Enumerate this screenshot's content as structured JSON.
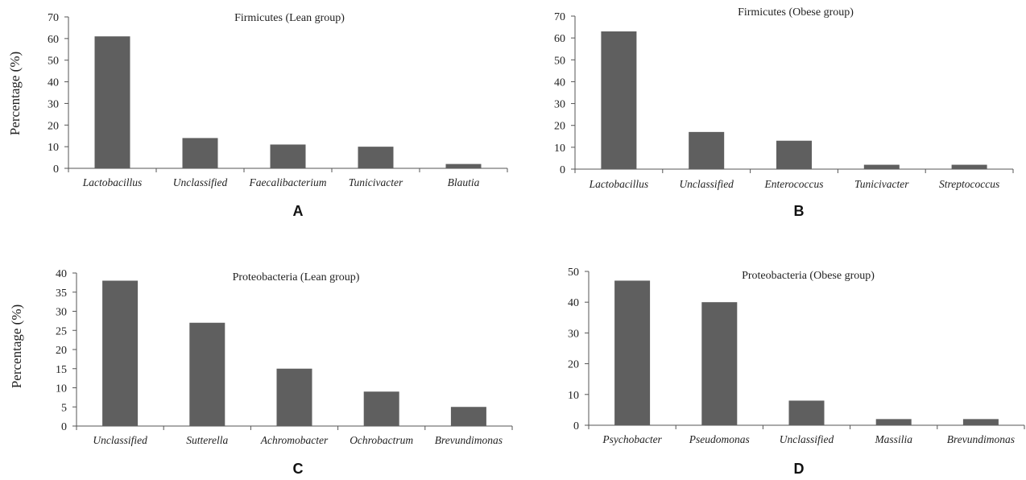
{
  "colors": {
    "bar": "#5f5f5f",
    "axis": "#555555",
    "text": "#222222"
  },
  "chart_data": [
    {
      "type": "bar",
      "panel": "A",
      "title": "Firmicutes (Lean group)",
      "ylabel": "Percentage (%)",
      "xlabel": "",
      "ylim": [
        0,
        70
      ],
      "yticks": [
        0,
        10,
        20,
        30,
        40,
        50,
        60,
        70
      ],
      "categories": [
        "Lactobacillus",
        "Unclassified",
        "Faecalibacterium",
        "Tunicivacter",
        "Blautia"
      ],
      "values": [
        61,
        14,
        11,
        10,
        2
      ]
    },
    {
      "type": "bar",
      "panel": "B",
      "title": "Firmicutes (Obese group)",
      "ylabel": "",
      "xlabel": "",
      "ylim": [
        0,
        70
      ],
      "yticks": [
        0,
        10,
        20,
        30,
        40,
        50,
        60,
        70
      ],
      "categories": [
        "Lactobacillus",
        "Unclassified",
        "Enterococcus",
        "Tunicivacter",
        "Streptococcus"
      ],
      "values": [
        63,
        17,
        13,
        2,
        2
      ]
    },
    {
      "type": "bar",
      "panel": "C",
      "title": "Proteobacteria (Lean group)",
      "ylabel": "Percentage (%)",
      "xlabel": "",
      "ylim": [
        0,
        40
      ],
      "yticks": [
        0,
        5,
        10,
        15,
        20,
        25,
        30,
        35,
        40
      ],
      "categories": [
        "Unclassified",
        "Sutterella",
        "Achromobacter",
        "Ochrobactrum",
        "Brevundimonas"
      ],
      "values": [
        38,
        27,
        15,
        9,
        5
      ]
    },
    {
      "type": "bar",
      "panel": "D",
      "title": "Proteobacteria (Obese group)",
      "ylabel": "",
      "xlabel": "",
      "ylim": [
        0,
        50
      ],
      "yticks": [
        0,
        10,
        20,
        30,
        40,
        50
      ],
      "categories": [
        "Psychobacter",
        "Pseudomonas",
        "Unclassified",
        "Massilia",
        "Brevundimonas"
      ],
      "values": [
        47,
        40,
        8,
        2,
        2
      ]
    }
  ]
}
